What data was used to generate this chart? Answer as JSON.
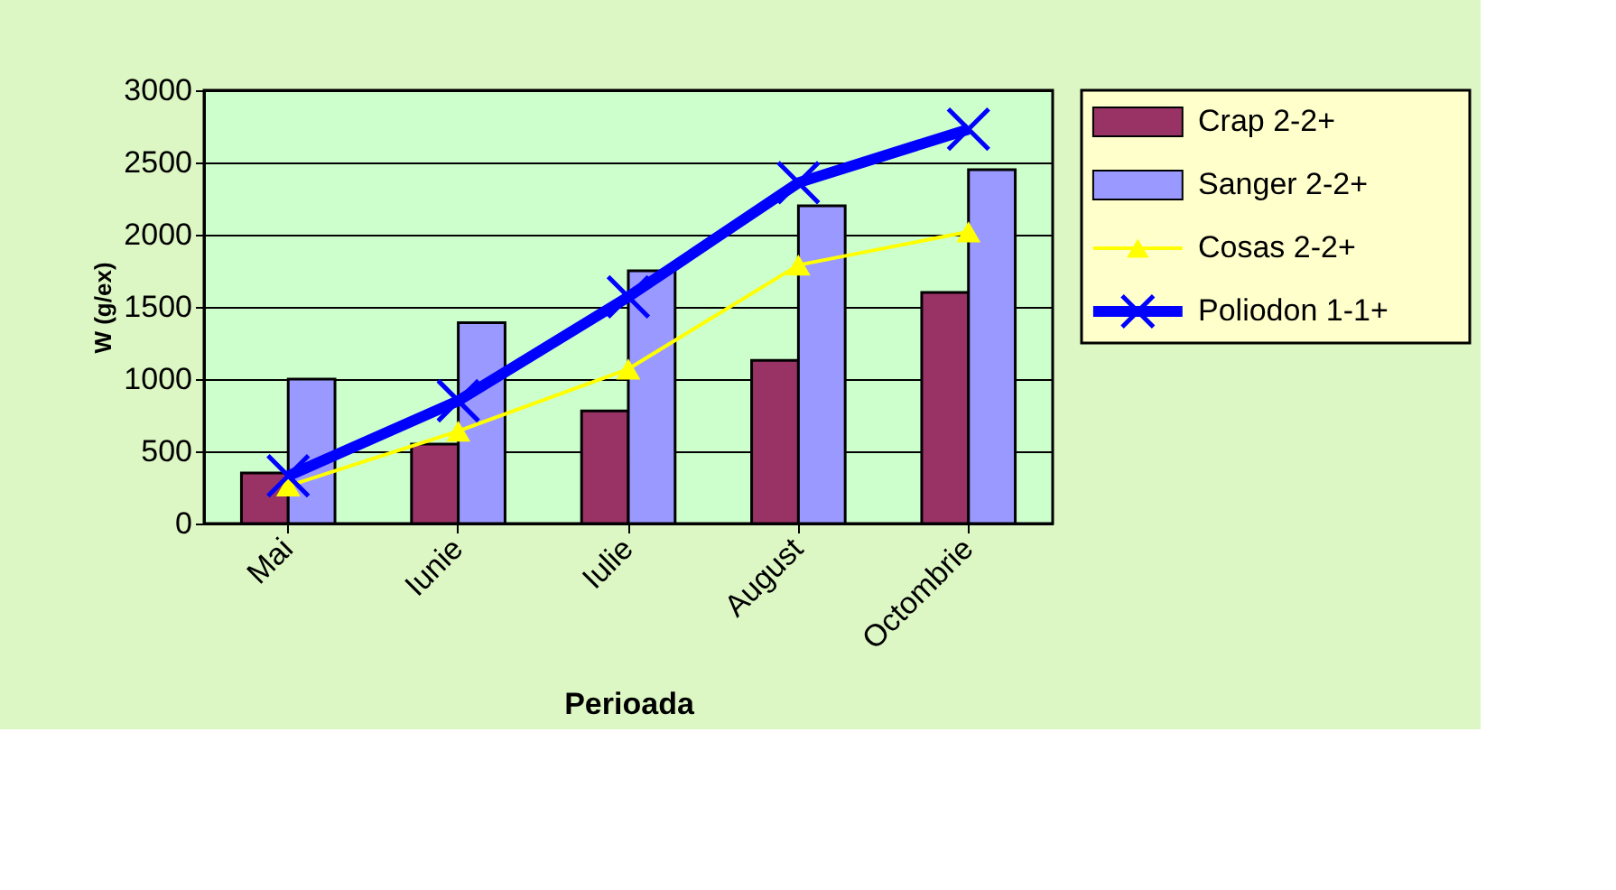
{
  "chart_data": {
    "type": "bar",
    "xlabel": "Perioada",
    "ylabel": "W (g/ex)",
    "categories": [
      "Mai",
      "Iunie",
      "Iulie",
      "August",
      "Octombrie"
    ],
    "series": [
      {
        "name": "Crap 2-2+",
        "color": "#993366",
        "values": [
          350,
          550,
          780,
          1130,
          1600
        ]
      },
      {
        "name": "Sanger 2-2+",
        "color": "#9999ff",
        "values": [
          1000,
          1390,
          1750,
          2200,
          2450
        ]
      },
      {
        "name": "Cosas 2-2+",
        "type": "line",
        "color": "#ffff00",
        "marker": "triangle",
        "values": [
          260,
          640,
          1070,
          1790,
          2020
        ]
      },
      {
        "name": "Poliodon 1-1+",
        "type": "line",
        "color": "#0000ff",
        "marker": "cross",
        "values": [
          330,
          850,
          1570,
          2360,
          2730
        ]
      }
    ],
    "ylim": [
      0,
      3000
    ],
    "yticks": [
      0,
      500,
      1000,
      1500,
      2000,
      2500,
      3000
    ],
    "grid": "y",
    "legend": "right"
  }
}
